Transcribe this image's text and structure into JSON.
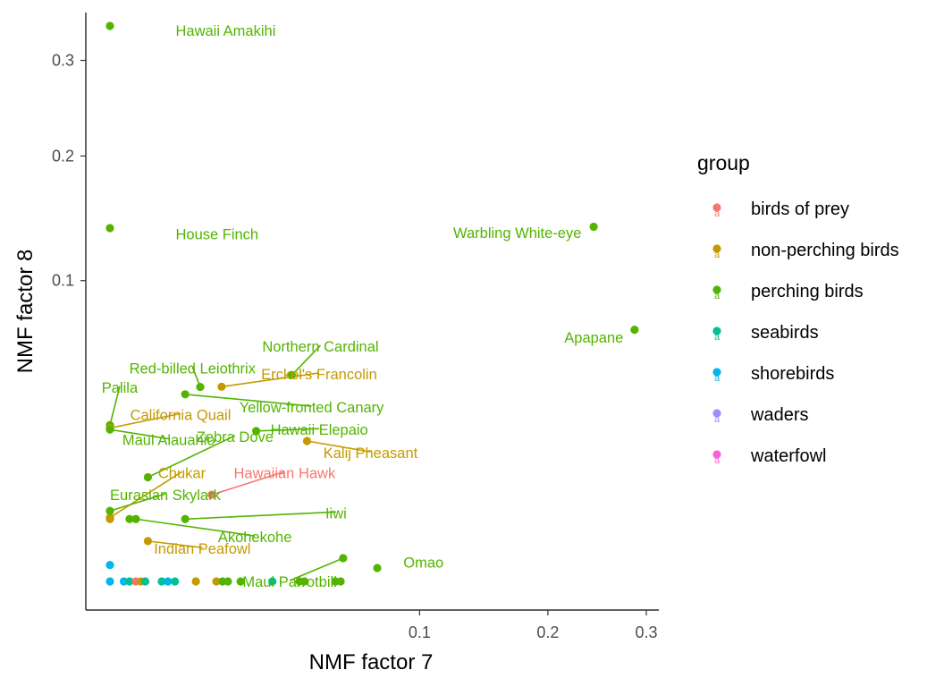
{
  "chart_data": {
    "type": "scatter",
    "xlabel": "NMF factor 7",
    "ylabel": "NMF factor 8",
    "x_scale": "sqrt",
    "y_scale": "sqrt",
    "xlim": [
      0,
      0.315
    ],
    "ylim": [
      0,
      0.36
    ],
    "x_ticks": [
      {
        "value": 0.1,
        "label": "0.1"
      },
      {
        "value": 0.2,
        "label": "0.2"
      },
      {
        "value": 0.3,
        "label": "0.3"
      }
    ],
    "y_ticks": [
      {
        "value": 0.1,
        "label": "0.1"
      },
      {
        "value": 0.2,
        "label": "0.2"
      },
      {
        "value": 0.3,
        "label": "0.3"
      }
    ],
    "grid": false,
    "legend": {
      "title": "group",
      "position": "right",
      "entries": [
        {
          "name": "birds of prey",
          "color": "#F8766D"
        },
        {
          "name": "non-perching birds",
          "color": "#C49A00"
        },
        {
          "name": "perching birds",
          "color": "#53B400"
        },
        {
          "name": "seabirds",
          "color": "#00C094"
        },
        {
          "name": "shorebirds",
          "color": "#00B6EB"
        },
        {
          "name": "waders",
          "color": "#A58AFF"
        },
        {
          "name": "waterfowl",
          "color": "#FB61D7"
        }
      ]
    },
    "points": [
      {
        "name": "Hawaii Amakihi",
        "group": "perching birds",
        "x": 0.0,
        "y": 0.341,
        "label_x": 0.0045,
        "label_y": 0.3355,
        "anchor": "start",
        "leader": false
      },
      {
        "name": "House Finch",
        "group": "perching birds",
        "x": 0.0,
        "y": 0.138,
        "label_x": 0.0045,
        "label_y": 0.1335,
        "anchor": "start",
        "leader": false
      },
      {
        "name": "Warbling White-eye",
        "group": "perching birds",
        "x": 0.244,
        "y": 0.139,
        "label_x": 0.2318,
        "label_y": 0.1345,
        "anchor": "end",
        "leader": false
      },
      {
        "name": "Apapane",
        "group": "perching birds",
        "x": 0.287,
        "y": 0.07,
        "label_x": 0.2749,
        "label_y": 0.0658,
        "anchor": "end",
        "leader": false
      },
      {
        "name": "Omao",
        "group": "perching birds",
        "x": 0.0745,
        "y": 0.0002,
        "label_x": 0.0898,
        "label_y": 0.0004,
        "anchor": "start",
        "leader": false
      },
      {
        "name": "Red-billed Leiothrix",
        "group": "perching birds",
        "x": 0.0085,
        "y": 0.0418,
        "label_x": 0.0071,
        "label_y": 0.0504,
        "anchor": "middle",
        "leader": true
      },
      {
        "name": "Northern Cardinal",
        "group": "perching birds",
        "x": 0.0345,
        "y": 0.0471,
        "label_x": 0.0462,
        "label_y": 0.0611,
        "anchor": "middle",
        "leader": true
      },
      {
        "name": "Erckel's Francolin",
        "group": "non-perching birds",
        "x": 0.013,
        "y": 0.0419,
        "label_x": 0.0456,
        "label_y": 0.0476,
        "anchor": "middle",
        "leader": true
      },
      {
        "name": "Palila",
        "group": "perching birds",
        "x": 0.0,
        "y": 0.027,
        "label_x": 0.0001,
        "label_y": 0.0417,
        "anchor": "middle",
        "leader": true
      },
      {
        "name": "Yellow-fronted Canary",
        "group": "perching birds",
        "x": 0.0059,
        "y": 0.0387,
        "label_x": 0.0424,
        "label_y": 0.0336,
        "anchor": "middle",
        "leader": true
      },
      {
        "name": "California Quail",
        "group": "non-perching birds",
        "x": 0.0,
        "y": 0.026,
        "label_x": 0.0052,
        "label_y": 0.0308,
        "anchor": "middle",
        "leader": true
      },
      {
        "name": "Hawaii Elepaio",
        "group": "perching birds",
        "x": 0.0223,
        "y": 0.025,
        "label_x": 0.0457,
        "label_y": 0.0255,
        "anchor": "middle",
        "leader": true
      },
      {
        "name": "Maui Alauahio",
        "group": "perching birds",
        "x": 0.0,
        "y": 0.0255,
        "label_x": 0.0036,
        "label_y": 0.0222,
        "anchor": "middle",
        "leader": true
      },
      {
        "name": "Zebra Dove",
        "group": "perching birds",
        "x": 0.0015,
        "y": 0.012,
        "label_x": 0.0163,
        "label_y": 0.0232,
        "anchor": "middle",
        "leader": true
      },
      {
        "name": "Kalij Pheasant",
        "group": "non-perching birds",
        "x": 0.0405,
        "y": 0.0218,
        "label_x": 0.0708,
        "label_y": 0.0183,
        "anchor": "middle",
        "leader": true
      },
      {
        "name": "Chukar",
        "group": "non-perching birds",
        "x": 0.0,
        "y": 0.0045,
        "label_x": 0.0054,
        "label_y": 0.0131,
        "anchor": "middle",
        "leader": true
      },
      {
        "name": "Hawaiian Hawk",
        "group": "birds of prey",
        "x": 0.0108,
        "y": 0.0083,
        "label_x": 0.0318,
        "label_y": 0.0131,
        "anchor": "middle",
        "leader": true
      },
      {
        "name": "Eurasian Skylark",
        "group": "perching birds",
        "x": 0.0,
        "y": 0.0055,
        "label_x": 0.0032,
        "label_y": 0.0083,
        "anchor": "middle",
        "leader": true
      },
      {
        "name": "Iiwi",
        "group": "perching birds",
        "x": 0.0059,
        "y": 0.0043,
        "label_x": 0.0533,
        "label_y": 0.0052,
        "anchor": "middle",
        "leader": true
      },
      {
        "name": "Akohekohe",
        "group": "perching birds",
        "x": 0.0007,
        "y": 0.0043,
        "label_x": 0.0219,
        "label_y": 0.0022,
        "anchor": "middle",
        "leader": true
      },
      {
        "name": "Indian Peafowl",
        "group": "non-perching birds",
        "x": 0.0015,
        "y": 0.0018,
        "label_x": 0.0089,
        "label_y": 0.0012,
        "anchor": "middle",
        "leader": true
      },
      {
        "name": "Maui Parrotbill",
        "group": "perching birds",
        "x": 0.0567,
        "y": 0.0006,
        "label_x": 0.0337,
        "label_y": 0.0,
        "anchor": "middle",
        "leader": true
      },
      {
        "name": "",
        "group": "perching birds",
        "x": 0.0004,
        "y": 0.0043
      },
      {
        "name": "",
        "group": "non-perching birds",
        "x": 0.0,
        "y": 0.0043
      },
      {
        "name": "",
        "group": "shorebirds",
        "x": 0.0,
        "y": 0.0003
      },
      {
        "name": "",
        "group": "shorebirds",
        "x": 0.0,
        "y": 0.0
      },
      {
        "name": "",
        "group": "shorebirds",
        "x": 0.0002,
        "y": 0.0
      },
      {
        "name": "",
        "group": "seabirds",
        "x": 0.0004,
        "y": 0.0
      },
      {
        "name": "",
        "group": "birds of prey",
        "x": 0.0007,
        "y": 0.0
      },
      {
        "name": "",
        "group": "non-perching birds",
        "x": 0.001,
        "y": 0.0
      },
      {
        "name": "",
        "group": "seabirds",
        "x": 0.0013,
        "y": 0.0
      },
      {
        "name": "",
        "group": "seabirds",
        "x": 0.0028,
        "y": 0.0
      },
      {
        "name": "",
        "group": "shorebirds",
        "x": 0.0035,
        "y": 0.0
      },
      {
        "name": "",
        "group": "seabirds",
        "x": 0.0044,
        "y": 0.0
      },
      {
        "name": "",
        "group": "non-perching birds",
        "x": 0.0077,
        "y": 0.0
      },
      {
        "name": "",
        "group": "non-perching birds",
        "x": 0.0118,
        "y": 0.0
      },
      {
        "name": "",
        "group": "perching birds",
        "x": 0.0132,
        "y": 0.0
      },
      {
        "name": "",
        "group": "perching birds",
        "x": 0.0145,
        "y": 0.0
      },
      {
        "name": "",
        "group": "perching birds",
        "x": 0.0178,
        "y": 0.0
      },
      {
        "name": "",
        "group": "seabirds",
        "x": 0.0275,
        "y": 0.0
      },
      {
        "name": "",
        "group": "perching birds",
        "x": 0.0375,
        "y": 0.0
      },
      {
        "name": "",
        "group": "perching birds",
        "x": 0.0395,
        "y": 0.0
      },
      {
        "name": "",
        "group": "perching birds",
        "x": 0.053,
        "y": 0.0
      },
      {
        "name": "",
        "group": "perching birds",
        "x": 0.0555,
        "y": 0.0
      }
    ]
  }
}
